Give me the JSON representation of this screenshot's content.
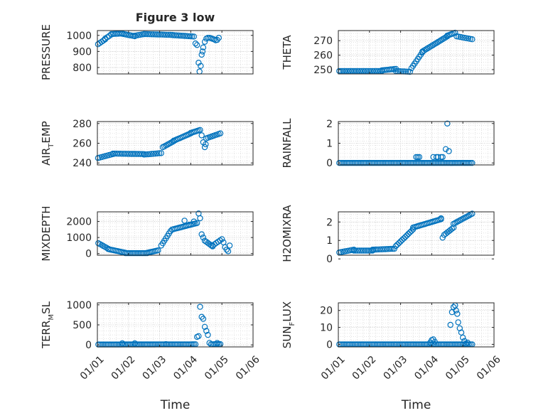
{
  "chart_data": [
    {
      "type": "scatter",
      "panel": 1,
      "title": "Figure 3 low",
      "ylabel": "PRESSURE",
      "ylim": [
        760,
        1030
      ],
      "yticks": [
        "800",
        "900",
        "1000"
      ],
      "ytick_values": [
        800,
        900,
        1000
      ],
      "xlim": [
        0,
        5
      ],
      "xticks": [
        "01/01",
        "01/02",
        "01/03",
        "01/04",
        "01/05",
        "01/06"
      ],
      "grid": true,
      "segments": [
        {
          "from": [
            0.02,
            945
          ],
          "to": [
            0.25,
            975
          ],
          "step": 0.06
        },
        {
          "from": [
            0.25,
            980
          ],
          "to": [
            0.45,
            1005
          ],
          "step": 0.06
        },
        {
          "from": [
            0.45,
            1008
          ],
          "to": [
            0.8,
            1012
          ],
          "step": 0.06
        },
        {
          "from": [
            0.8,
            1010
          ],
          "to": [
            1.2,
            995
          ],
          "step": 0.06
        },
        {
          "from": [
            1.2,
            998
          ],
          "to": [
            1.5,
            1008
          ],
          "step": 0.06
        },
        {
          "from": [
            1.5,
            1008
          ],
          "to": [
            2.4,
            1003
          ],
          "step": 0.06
        },
        {
          "from": [
            2.4,
            1002
          ],
          "to": [
            3.1,
            993
          ],
          "step": 0.06
        }
      ],
      "points": [
        [
          3.15,
          950
        ],
        [
          3.2,
          940
        ],
        [
          3.25,
          830
        ],
        [
          3.28,
          775
        ],
        [
          3.32,
          810
        ],
        [
          3.35,
          880
        ],
        [
          3.38,
          900
        ],
        [
          3.4,
          925
        ],
        [
          3.45,
          960
        ],
        [
          3.5,
          980
        ],
        [
          3.55,
          985
        ],
        [
          3.6,
          985
        ],
        [
          3.65,
          982
        ],
        [
          3.7,
          978
        ],
        [
          3.75,
          975
        ],
        [
          3.8,
          970
        ],
        [
          3.85,
          972
        ],
        [
          3.9,
          985
        ]
      ]
    },
    {
      "type": "scatter",
      "panel": 2,
      "title": "",
      "ylabel": "THETA",
      "ylim": [
        247,
        277
      ],
      "yticks": [
        "250",
        "260",
        "270"
      ],
      "ytick_values": [
        250,
        260,
        270
      ],
      "xlim": [
        0,
        5
      ],
      "xticks": [
        "01/01",
        "01/02",
        "01/03",
        "01/04",
        "01/05",
        "01/06"
      ],
      "grid": true,
      "segments": [
        {
          "from": [
            0.03,
            249
          ],
          "to": [
            1.4,
            249
          ],
          "step": 0.06
        },
        {
          "from": [
            1.4,
            249.5
          ],
          "to": [
            1.85,
            250.5
          ],
          "step": 0.06
        },
        {
          "from": [
            1.85,
            249
          ],
          "to": [
            2.3,
            248.5
          ],
          "step": 0.06
        },
        {
          "from": [
            2.35,
            251
          ],
          "to": [
            2.7,
            262
          ],
          "step": 0.05
        },
        {
          "from": [
            2.7,
            262.5
          ],
          "to": [
            3.5,
            273
          ],
          "step": 0.05
        },
        {
          "from": [
            3.5,
            273.5
          ],
          "to": [
            3.75,
            275.5
          ],
          "step": 0.05
        },
        {
          "from": [
            3.8,
            273
          ],
          "to": [
            4.3,
            271
          ],
          "step": 0.06
        }
      ],
      "points": []
    },
    {
      "type": "scatter",
      "panel": 3,
      "title": "",
      "ylabel": "AIR_TEMP",
      "ylim": [
        238,
        282
      ],
      "yticks": [
        "240",
        "260",
        "280"
      ],
      "ytick_values": [
        240,
        260,
        280
      ],
      "xlim": [
        0,
        5
      ],
      "xticks": [
        "01/01",
        "01/02",
        "01/03",
        "01/04",
        "01/05",
        "01/06"
      ],
      "grid": true,
      "segments": [
        {
          "from": [
            0.02,
            245
          ],
          "to": [
            0.5,
            249
          ],
          "step": 0.06
        },
        {
          "from": [
            0.5,
            249.5
          ],
          "to": [
            1.5,
            249
          ],
          "step": 0.06
        },
        {
          "from": [
            1.5,
            248.5
          ],
          "to": [
            2.05,
            250
          ],
          "step": 0.06
        },
        {
          "from": [
            2.1,
            256
          ],
          "to": [
            2.45,
            262
          ],
          "step": 0.05
        },
        {
          "from": [
            2.45,
            262.5
          ],
          "to": [
            3.0,
            270
          ],
          "step": 0.05
        },
        {
          "from": [
            3.0,
            270.5
          ],
          "to": [
            3.3,
            273.5
          ],
          "step": 0.05
        },
        {
          "from": [
            3.5,
            265
          ],
          "to": [
            3.95,
            270
          ],
          "step": 0.06
        }
      ],
      "points": [
        [
          3.35,
          268
        ],
        [
          3.4,
          261
        ],
        [
          3.45,
          256
        ],
        [
          3.48,
          259
        ]
      ]
    },
    {
      "type": "scatter",
      "panel": 4,
      "title": "",
      "ylabel": "RAINFALL",
      "ylim": [
        -0.1,
        2.1
      ],
      "yticks": [
        "0",
        "1",
        "2"
      ],
      "ytick_values": [
        0,
        1,
        2
      ],
      "xlim": [
        0,
        5
      ],
      "xticks": [
        "01/01",
        "01/02",
        "01/03",
        "01/04",
        "01/05",
        "01/06"
      ],
      "grid": true,
      "segments": [
        {
          "from": [
            0.03,
            0
          ],
          "to": [
            4.3,
            0
          ],
          "step": 0.05
        }
      ],
      "points": [
        [
          2.5,
          0.3
        ],
        [
          2.55,
          0.3
        ],
        [
          2.6,
          0.3
        ],
        [
          3.05,
          0.3
        ],
        [
          3.15,
          0.3
        ],
        [
          3.2,
          0.3
        ],
        [
          3.3,
          0.3
        ],
        [
          3.35,
          0.3
        ],
        [
          3.45,
          0.7
        ],
        [
          3.55,
          0.6
        ],
        [
          3.5,
          2.0
        ]
      ]
    },
    {
      "type": "scatter",
      "panel": 5,
      "title": "",
      "ylabel": "MIXDEPTH",
      "ylim": [
        -100,
        2600
      ],
      "yticks": [
        "0",
        "1000",
        "2000"
      ],
      "ytick_values": [
        0,
        1000,
        2000
      ],
      "xlim": [
        0,
        5
      ],
      "xticks": [
        "01/01",
        "01/02",
        "01/03",
        "01/04",
        "01/05",
        "01/06"
      ],
      "grid": true,
      "segments": [
        {
          "from": [
            0.03,
            650
          ],
          "to": [
            0.35,
            300
          ],
          "step": 0.05
        },
        {
          "from": [
            0.35,
            280
          ],
          "to": [
            0.9,
            50
          ],
          "step": 0.05
        },
        {
          "from": [
            0.9,
            30
          ],
          "to": [
            1.6,
            30
          ],
          "step": 0.05
        },
        {
          "from": [
            1.6,
            50
          ],
          "to": [
            1.95,
            200
          ],
          "step": 0.05
        },
        {
          "from": [
            2.05,
            500
          ],
          "to": [
            2.35,
            1400
          ],
          "step": 0.05
        },
        {
          "from": [
            2.4,
            1500
          ],
          "to": [
            3.2,
            1900
          ],
          "step": 0.05
        },
        {
          "from": [
            3.45,
            800
          ],
          "to": [
            3.7,
            450
          ],
          "step": 0.05
        },
        {
          "from": [
            3.7,
            500
          ],
          "to": [
            4.0,
            900
          ],
          "step": 0.06
        }
      ],
      "points": [
        [
          3.25,
          2500
        ],
        [
          3.3,
          2200
        ],
        [
          3.35,
          1200
        ],
        [
          3.4,
          1000
        ],
        [
          4.05,
          700
        ],
        [
          4.1,
          400
        ],
        [
          4.15,
          250
        ],
        [
          4.2,
          150
        ],
        [
          4.25,
          500
        ],
        [
          2.8,
          2050
        ],
        [
          2.95,
          1800
        ],
        [
          3.1,
          2000
        ]
      ]
    },
    {
      "type": "scatter",
      "panel": 6,
      "title": "",
      "ylabel": "H2OMIXRA",
      "ylim": [
        0.2,
        2.55
      ],
      "yticks": [
        "0",
        "1",
        "2"
      ],
      "ytick_values": [
        0,
        1,
        2
      ],
      "xlim": [
        0,
        5
      ],
      "xticks": [
        "01/01",
        "01/02",
        "01/03",
        "01/04",
        "01/05",
        "01/06"
      ],
      "grid": true,
      "segments": [
        {
          "from": [
            0.03,
            0.35
          ],
          "to": [
            0.5,
            0.5
          ],
          "step": 0.06
        },
        {
          "from": [
            0.5,
            0.45
          ],
          "to": [
            1.1,
            0.45
          ],
          "step": 0.06
        },
        {
          "from": [
            1.1,
            0.5
          ],
          "to": [
            1.8,
            0.55
          ],
          "step": 0.06
        },
        {
          "from": [
            1.85,
            0.7
          ],
          "to": [
            2.4,
            1.6
          ],
          "step": 0.05
        },
        {
          "from": [
            2.4,
            1.7
          ],
          "to": [
            3.0,
            2.0
          ],
          "step": 0.05
        },
        {
          "from": [
            3.0,
            2.0
          ],
          "to": [
            3.3,
            2.15
          ],
          "step": 0.05
        },
        {
          "from": [
            3.4,
            1.3
          ],
          "to": [
            3.7,
            1.7
          ],
          "step": 0.05
        },
        {
          "from": [
            3.7,
            1.9
          ],
          "to": [
            4.3,
            2.45
          ],
          "step": 0.05
        }
      ],
      "points": [
        [
          3.35,
          1.15
        ],
        [
          3.3,
          2.2
        ]
      ]
    },
    {
      "type": "scatter",
      "panel": 7,
      "title": "",
      "ylabel": "TERR_MSL",
      "ylim": [
        -50,
        1050
      ],
      "yticks": [
        "0",
        "500",
        "1000"
      ],
      "ytick_values": [
        0,
        500,
        1000
      ],
      "xlim": [
        0,
        5
      ],
      "xticks": [
        "01/01",
        "01/02",
        "01/03",
        "01/04",
        "01/05",
        "01/06"
      ],
      "grid": true,
      "segments": [
        {
          "from": [
            0.03,
            10
          ],
          "to": [
            3.15,
            15
          ],
          "step": 0.05
        },
        {
          "from": [
            3.65,
            15
          ],
          "to": [
            3.95,
            20
          ],
          "step": 0.05
        }
      ],
      "points": [
        [
          0.8,
          40
        ],
        [
          1.2,
          40
        ],
        [
          2.2,
          20
        ],
        [
          3.2,
          200
        ],
        [
          3.25,
          220
        ],
        [
          3.3,
          950
        ],
        [
          3.35,
          700
        ],
        [
          3.4,
          650
        ],
        [
          3.45,
          450
        ],
        [
          3.5,
          350
        ],
        [
          3.55,
          250
        ],
        [
          3.6,
          50
        ],
        [
          3.85,
          50
        ]
      ]
    },
    {
      "type": "scatter",
      "panel": 8,
      "title": "",
      "ylabel": "SUN_FLUX",
      "ylim": [
        -1.5,
        24.5
      ],
      "yticks": [
        "0",
        "10",
        "20"
      ],
      "ytick_values": [
        0,
        10,
        20
      ],
      "xlim": [
        0,
        5
      ],
      "xticks": [
        "01/01",
        "01/02",
        "01/03",
        "01/04",
        "01/05",
        "01/06"
      ],
      "grid": true,
      "segments": [
        {
          "from": [
            0.03,
            0
          ],
          "to": [
            4.3,
            0
          ],
          "step": 0.05
        }
      ],
      "points": [
        [
          2.95,
          1.0
        ],
        [
          3.0,
          2.5
        ],
        [
          3.05,
          3.0
        ],
        [
          3.1,
          1.5
        ],
        [
          3.6,
          11.5
        ],
        [
          3.65,
          19
        ],
        [
          3.7,
          22
        ],
        [
          3.75,
          23
        ],
        [
          3.78,
          20
        ],
        [
          3.82,
          18
        ],
        [
          3.85,
          13
        ],
        [
          3.9,
          9.5
        ],
        [
          3.95,
          7
        ],
        [
          4.0,
          4
        ],
        [
          4.05,
          2
        ],
        [
          4.1,
          0.5
        ],
        [
          4.15,
          1.0
        ]
      ]
    }
  ],
  "panel_labels": {
    "xlabel": "Time",
    "air_temp": {
      "main": "AIR",
      "sub": "T",
      "rest": "EMP"
    },
    "terr_msl": {
      "main": "TERR",
      "sub": "M",
      "rest": "SL"
    },
    "sun_flux": {
      "main": "SUN",
      "sub": "F",
      "rest": "LUX"
    }
  },
  "colors": {
    "marker": "#0072BD",
    "axis": "#262626",
    "grid": "#d0d0d0"
  }
}
